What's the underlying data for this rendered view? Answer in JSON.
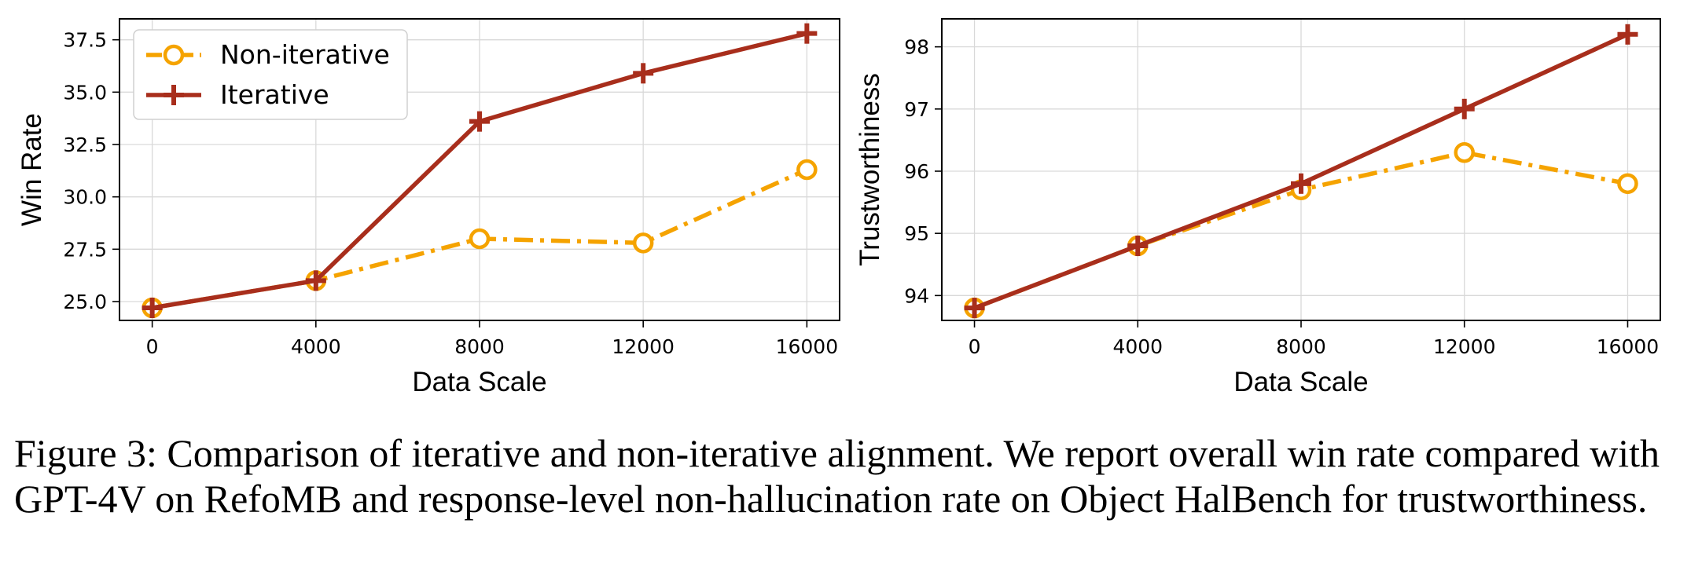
{
  "chart_data": [
    {
      "type": "line",
      "xlabel": "Data Scale",
      "ylabel": "Win Rate",
      "x": [
        0,
        4000,
        8000,
        12000,
        16000
      ],
      "xticks": [
        "0",
        "4000",
        "8000",
        "12000",
        "16000"
      ],
      "yticks": [
        "25.0",
        "27.5",
        "30.0",
        "32.5",
        "35.0",
        "37.5"
      ],
      "ytick_values": [
        25.0,
        27.5,
        30.0,
        32.5,
        35.0,
        37.5
      ],
      "xlim": [
        -800,
        16800
      ],
      "ylim": [
        24.1,
        38.5
      ],
      "grid": true,
      "legend": "top-left",
      "series": [
        {
          "name": "Non-iterative",
          "values": [
            24.7,
            26.0,
            28.0,
            27.8,
            31.3
          ],
          "color": "#F5A300",
          "style": "dashdot",
          "marker": "circle-open"
        },
        {
          "name": "Iterative",
          "values": [
            24.7,
            26.0,
            33.6,
            35.9,
            37.8
          ],
          "color": "#A82E1C",
          "style": "solid",
          "marker": "plus"
        }
      ]
    },
    {
      "type": "line",
      "xlabel": "Data Scale",
      "ylabel": "Trustworthiness",
      "x": [
        0,
        4000,
        8000,
        12000,
        16000
      ],
      "xticks": [
        "0",
        "4000",
        "8000",
        "12000",
        "16000"
      ],
      "yticks": [
        "94",
        "95",
        "96",
        "97",
        "98"
      ],
      "ytick_values": [
        94,
        95,
        96,
        97,
        98
      ],
      "xlim": [
        -800,
        16800
      ],
      "ylim": [
        93.6,
        98.45
      ],
      "grid": true,
      "legend": "none",
      "series": [
        {
          "name": "Non-iterative",
          "values": [
            93.8,
            94.8,
            95.7,
            96.3,
            95.8
          ],
          "color": "#F5A300",
          "style": "dashdot",
          "marker": "circle-open"
        },
        {
          "name": "Iterative",
          "values": [
            93.8,
            94.8,
            95.8,
            97.0,
            98.2
          ],
          "color": "#A82E1C",
          "style": "solid",
          "marker": "plus"
        }
      ]
    }
  ],
  "caption": "Figure 3: Comparison of iterative and non-iterative alignment. We report overall win rate compared with GPT-4V on RefoMB and response-level non-hallucination rate on Object HalBench for trustworthiness."
}
